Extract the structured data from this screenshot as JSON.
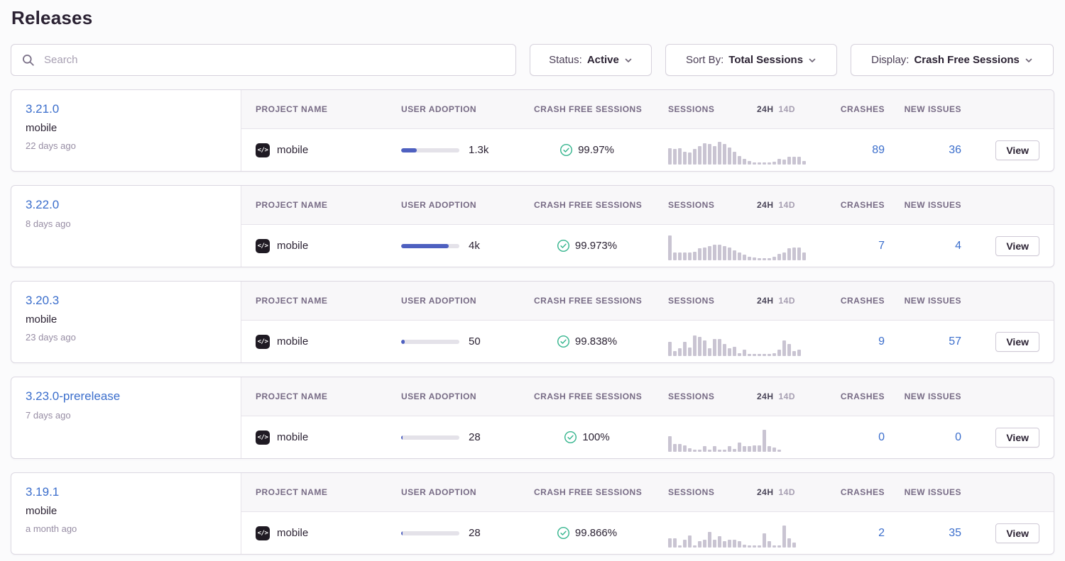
{
  "page": {
    "title": "Releases"
  },
  "toolbar": {
    "search_placeholder": "Search",
    "filters": [
      {
        "label": "Status:",
        "value": "Active"
      },
      {
        "label": "Sort By:",
        "value": "Total Sessions"
      },
      {
        "label": "Display:",
        "value": "Crash Free Sessions"
      }
    ]
  },
  "table_headers": {
    "project": "PROJECT NAME",
    "adoption": "USER ADOPTION",
    "crash_free": "CRASH FREE SESSIONS",
    "sessions": "SESSIONS",
    "period_24h": "24H",
    "period_14d": "14D",
    "crashes": "CRASHES",
    "new_issues": "NEW ISSUES"
  },
  "actions": {
    "view": "View"
  },
  "icons": {
    "project_platform_glyph": "</>"
  },
  "colors": {
    "accent_blue": "#3b6ecc",
    "progress_indigo": "#4e60c0",
    "success_teal": "#36b58e",
    "sparkline_gray": "#c9c4d2"
  },
  "releases": [
    {
      "version": "3.21.0",
      "project_label": "mobile",
      "time_ago": "22 days ago",
      "project_name": "mobile",
      "adoption_value": "1.3k",
      "adoption_fill_pct": 27,
      "crash_free_pct": "99.97%",
      "crashes": "89",
      "new_issues": "36",
      "sessions_sparkline": [
        62,
        60,
        62,
        48,
        47,
        60,
        72,
        82,
        80,
        72,
        88,
        78,
        66,
        50,
        33,
        22,
        12,
        7,
        7,
        7,
        7,
        10,
        20,
        17,
        30,
        30,
        30,
        12
      ]
    },
    {
      "version": "3.22.0",
      "project_label": null,
      "time_ago": "8 days ago",
      "project_name": "mobile",
      "adoption_value": "4k",
      "adoption_fill_pct": 82,
      "crash_free_pct": "99.973%",
      "crashes": "7",
      "new_issues": "4",
      "sessions_sparkline": [
        95,
        30,
        28,
        28,
        30,
        33,
        45,
        50,
        55,
        60,
        60,
        55,
        50,
        38,
        28,
        22,
        12,
        10,
        6,
        7,
        6,
        12,
        25,
        30,
        45,
        50,
        50,
        30
      ]
    },
    {
      "version": "3.20.3",
      "project_label": "mobile",
      "time_ago": "23 days ago",
      "project_name": "mobile",
      "adoption_value": "50",
      "adoption_fill_pct": 6,
      "crash_free_pct": "99.838%",
      "crashes": "9",
      "new_issues": "57",
      "sessions_sparkline": [
        55,
        18,
        28,
        55,
        33,
        80,
        75,
        60,
        28,
        65,
        65,
        45,
        28,
        35,
        10,
        25,
        8,
        6,
        6,
        6,
        8,
        10,
        25,
        60,
        45,
        18,
        25
      ]
    },
    {
      "version": "3.23.0-prerelease",
      "project_label": null,
      "time_ago": "7 days ago",
      "project_name": "mobile",
      "adoption_value": "28",
      "adoption_fill_pct": 3,
      "crash_free_pct": "100%",
      "crashes": "0",
      "new_issues": "0",
      "sessions_sparkline": [
        60,
        30,
        30,
        25,
        12,
        6,
        6,
        20,
        8,
        20,
        6,
        6,
        20,
        10,
        35,
        20,
        20,
        25,
        25,
        85,
        20,
        15,
        6
      ]
    },
    {
      "version": "3.19.1",
      "project_label": "mobile",
      "time_ago": "a month ago",
      "project_name": "mobile",
      "adoption_value": "28",
      "adoption_fill_pct": 3,
      "crash_free_pct": "99.866%",
      "crashes": "2",
      "new_issues": "35",
      "sessions_sparkline": [
        35,
        35,
        8,
        28,
        45,
        8,
        25,
        30,
        60,
        30,
        42,
        25,
        30,
        30,
        25,
        10,
        6,
        6,
        6,
        55,
        25,
        6,
        6,
        85,
        35,
        18
      ]
    }
  ]
}
